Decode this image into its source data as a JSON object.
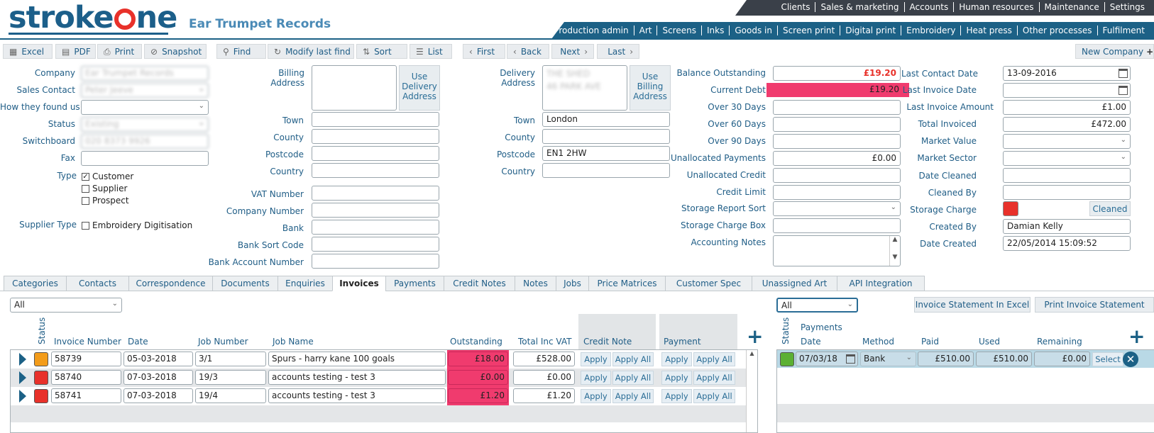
{
  "brand": {
    "logo_left": "stroke",
    "logo_right": "ne",
    "company_title": "Ear Trumpet Records"
  },
  "topnav1": [
    "Clients",
    "Sales & marketing",
    "Accounts",
    "Human resources",
    "Maintenance",
    "Settings"
  ],
  "topnav2": [
    "Production admin",
    "Art",
    "Screens",
    "Inks",
    "Goods in",
    "Screen print",
    "Digital print",
    "Embroidery",
    "Heat press",
    "Other processes",
    "Fulfilment"
  ],
  "toolbar": {
    "excel": "Excel",
    "pdf": "PDF",
    "print": "Print",
    "snapshot": "Snapshot",
    "find": "Find",
    "modify": "Modify last find",
    "sort": "Sort",
    "list": "List",
    "first": "First",
    "back": "Back",
    "next": "Next",
    "last": "Last",
    "new_company": "New Company"
  },
  "form": {
    "company_label": "Company",
    "company_value": "Ear Trumpet Records",
    "sales_contact_label": "Sales Contact",
    "sales_contact_value": "Peter Jeeve",
    "found_us_label": "How they found us",
    "status_label": "Status",
    "status_value": "Existing",
    "switchboard_label": "Switchboard",
    "switchboard_value": "020 8373 9926",
    "fax_label": "Fax",
    "type_label": "Type",
    "type_customer": "Customer",
    "type_supplier": "Supplier",
    "type_prospect": "Prospect",
    "supplier_type_label": "Supplier Type",
    "supplier_type_value": "Embroidery Digitisation",
    "billing_label": "Billing\nAddress",
    "use_delivery": "Use\nDelivery\nAddress",
    "town": "Town",
    "county": "County",
    "postcode": "Postcode",
    "country": "Country",
    "vat": "VAT Number",
    "company_number": "Company Number",
    "bank": "Bank",
    "sort_code": "Bank Sort Code",
    "account_number": "Bank Account Number",
    "delivery_label": "Delivery\nAddress",
    "delivery_line1": "THE SHED",
    "delivery_line2": "46 PARK AVE",
    "use_billing": "Use\nBilling\nAddress",
    "delivery_town": "London",
    "delivery_postcode": "EN1 2HW"
  },
  "accounts": {
    "balance_label": "Balance Outstanding",
    "balance_value": "£19.20",
    "debt_label": "Current Debt",
    "debt_value": "£19.20",
    "over30": "Over 30 Days",
    "over60": "Over 60 Days",
    "over90": "Over 90 Days",
    "unalloc_pay_label": "Unallocated Payments",
    "unalloc_pay_value": "£0.00",
    "unalloc_credit": "Unallocated Credit",
    "credit_limit": "Credit Limit",
    "storage_sort": "Storage Report Sort",
    "storage_box": "Storage Charge Box",
    "acc_notes": "Accounting Notes",
    "last_contact_label": "Last Contact Date",
    "last_contact_value": "13-09-2016",
    "last_invoice_date": "Last Invoice Date",
    "last_invoice_amount_label": "Last Invoice Amount",
    "last_invoice_amount_value": "£1.00",
    "total_invoiced_label": "Total Invoiced",
    "total_invoiced_value": "£472.00",
    "market_value": "Market Value",
    "market_sector": "Market Sector",
    "date_cleaned": "Date Cleaned",
    "cleaned_by": "Cleaned By",
    "storage_charge": "Storage Charge",
    "cleaned_btn": "Cleaned",
    "created_by_label": "Created By",
    "created_by_value": "Damian Kelly",
    "date_created_label": "Date Created",
    "date_created_value": "22/05/2014 15:09:52"
  },
  "tabs": [
    "Categories",
    "Contacts",
    "Correspondence",
    "Documents",
    "Enquiries",
    "Invoices",
    "Payments",
    "Credit Notes",
    "Notes",
    "Jobs",
    "Price Matrices",
    "Customer Spec",
    "Unassigned Art",
    "API Integration"
  ],
  "invoices": {
    "filter": "All",
    "headers": {
      "status": "Status",
      "number": "Invoice Number",
      "date": "Date",
      "job_number": "Job Number",
      "job_name": "Job Name",
      "outstanding": "Outstanding",
      "total": "Total Inc VAT",
      "credit": "Credit Note",
      "payment": "Payment"
    },
    "apply": "Apply",
    "apply_all": "Apply All",
    "rows": [
      {
        "status_color": "#f39c1a",
        "number": "58739",
        "date": "05-03-2018",
        "job_number": "3/1",
        "job_name": "Spurs - harry kane 100 goals",
        "outstanding": "£18.00",
        "total": "£528.00"
      },
      {
        "status_color": "#e8312a",
        "number": "58740",
        "date": "07-03-2018",
        "job_number": "19/3",
        "job_name": "accounts testing - test 3",
        "outstanding": "£0.00",
        "total": "£0.00"
      },
      {
        "status_color": "#e8312a",
        "number": "58741",
        "date": "07-03-2018",
        "job_number": "19/4",
        "job_name": "accounts testing - test 3",
        "outstanding": "£1.20",
        "total": "£1.20"
      }
    ]
  },
  "payments": {
    "filter": "All",
    "btn_excel": "Invoice Statement In Excel",
    "btn_print": "Print Invoice Statement",
    "headers": {
      "status": "Status",
      "payments": "Payments",
      "date": "Date",
      "method": "Method",
      "paid": "Paid",
      "used": "Used",
      "remaining": "Remaining"
    },
    "row": {
      "status_color": "#5bb033",
      "date": "07/03/18",
      "method": "Bank",
      "paid": "£510.00",
      "used": "£510.00",
      "remaining": "£0.00",
      "select": "Select"
    }
  }
}
